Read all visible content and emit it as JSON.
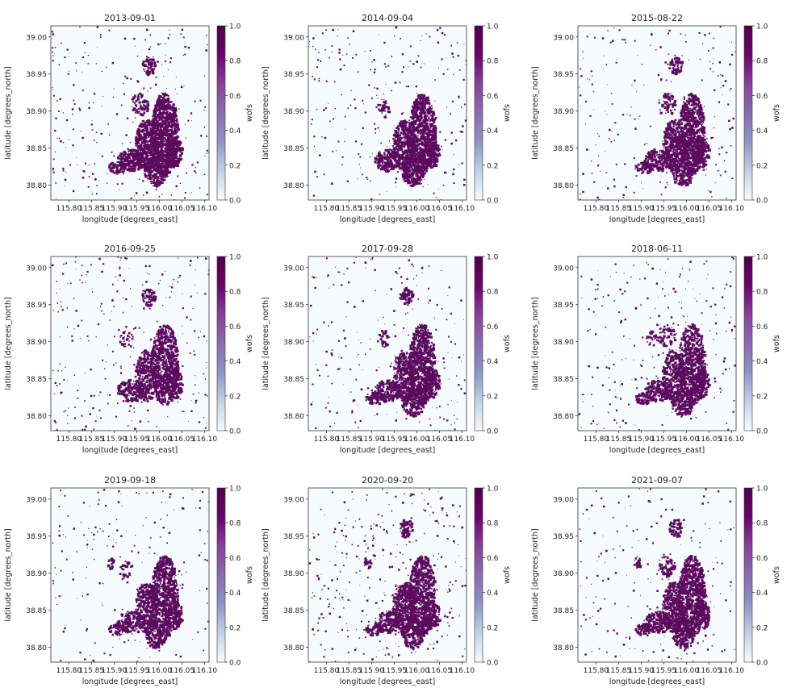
{
  "figure": {
    "panels": [
      {
        "title": "2013-09-01",
        "seed": 11,
        "wetness": 1.0
      },
      {
        "title": "2014-09-04",
        "seed": 23,
        "wetness": 0.95
      },
      {
        "title": "2015-08-22",
        "seed": 37,
        "wetness": 0.8
      },
      {
        "title": "2016-09-25",
        "seed": 41,
        "wetness": 0.72
      },
      {
        "title": "2017-09-28",
        "seed": 53,
        "wetness": 0.8
      },
      {
        "title": "2018-06-11",
        "seed": 67,
        "wetness": 0.75
      },
      {
        "title": "2019-09-18",
        "seed": 71,
        "wetness": 0.78
      },
      {
        "title": "2020-09-20",
        "seed": 83,
        "wetness": 0.85
      },
      {
        "title": "2021-09-07",
        "seed": 97,
        "wetness": 0.85
      }
    ],
    "colors": {
      "background": "#f6fcfd",
      "water": "#5c0a5e",
      "colormap": [
        "#f7fcfd",
        "#bfd3e6",
        "#8c96c6",
        "#8c6bb1",
        "#88419d",
        "#6e016b",
        "#4d004b"
      ]
    }
  },
  "chart_data": {
    "type": "heatmap",
    "colormap": "BuPu",
    "xlabel": "longitude [degrees_east]",
    "ylabel": "latitude [degrees_north]",
    "xticks": [
      115.8,
      115.85,
      115.9,
      115.95,
      116.0,
      116.05,
      116.1
    ],
    "xtick_labels": [
      "115.80",
      "115.85",
      "115.90",
      "115.95",
      "116.00",
      "116.05",
      "116.10"
    ],
    "yticks": [
      38.8,
      38.85,
      38.9,
      38.95,
      39.0
    ],
    "ytick_labels": [
      "38.80",
      "38.85",
      "38.90",
      "38.95",
      "39.00"
    ],
    "xlim": [
      115.76,
      116.11
    ],
    "ylim": [
      38.78,
      39.015
    ],
    "colorbar": {
      "label": "wofs",
      "ticks": [
        0.0,
        0.2,
        0.4,
        0.6,
        0.8,
        1.0
      ],
      "tick_labels": [
        "0.0",
        "0.2",
        "0.4",
        "0.6",
        "0.8",
        "1.0"
      ],
      "range": [
        0,
        1
      ]
    },
    "dates": [
      "2013-09-01",
      "2014-09-04",
      "2015-08-22",
      "2016-09-25",
      "2017-09-28",
      "2018-06-11",
      "2019-09-18",
      "2020-09-20",
      "2021-09-07"
    ]
  }
}
